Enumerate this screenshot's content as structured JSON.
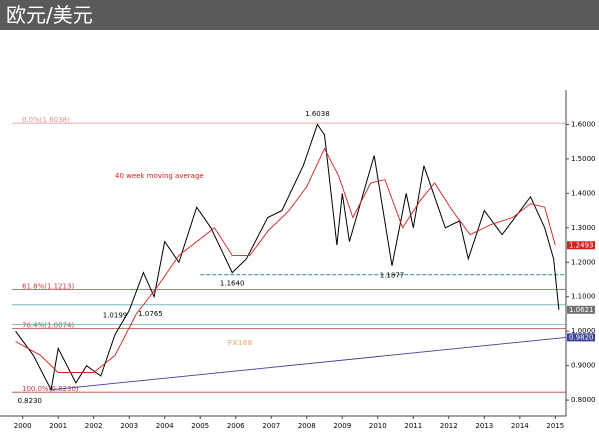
{
  "chart_data": {
    "type": "line",
    "title": "欧元/美元",
    "x": [
      1999.8,
      2000.3,
      2000.8,
      2001.0,
      2001.5,
      2001.8,
      2002.2,
      2002.6,
      2003.0,
      2003.4,
      2003.7,
      2004.0,
      2004.4,
      2004.9,
      2005.3,
      2005.9,
      2006.3,
      2006.9,
      2007.3,
      2007.9,
      2008.3,
      2008.5,
      2008.85,
      2009.0,
      2009.2,
      2009.9,
      2010.4,
      2010.8,
      2011.0,
      2011.3,
      2011.9,
      2012.3,
      2012.55,
      2013.0,
      2013.5,
      2014.3,
      2014.7,
      2014.95,
      2015.1
    ],
    "series": [
      {
        "color": "#000000",
        "values": [
          1.0,
          0.93,
          0.83,
          0.95,
          0.85,
          0.9,
          0.87,
          0.99,
          1.06,
          1.17,
          1.1,
          1.26,
          1.2,
          1.36,
          1.3,
          1.17,
          1.21,
          1.33,
          1.35,
          1.48,
          1.6,
          1.57,
          1.25,
          1.4,
          1.26,
          1.51,
          1.19,
          1.4,
          1.3,
          1.48,
          1.3,
          1.32,
          1.21,
          1.35,
          1.28,
          1.39,
          1.3,
          1.21,
          1.0621
        ]
      },
      {
        "name": "40 week moving average",
        "color": "#d02020",
        "x": [
          1999.8,
          2000.5,
          2001.0,
          2001.5,
          2002.0,
          2002.6,
          2003.2,
          2003.8,
          2004.4,
          2004.9,
          2005.4,
          2005.9,
          2006.4,
          2006.9,
          2007.5,
          2008.0,
          2008.5,
          2008.9,
          2009.3,
          2009.8,
          2010.2,
          2010.7,
          2011.2,
          2011.6,
          2012.1,
          2012.6,
          2013.2,
          2013.8,
          2014.3,
          2014.7,
          2015.0
        ],
        "values": [
          0.97,
          0.93,
          0.88,
          0.88,
          0.88,
          0.93,
          1.05,
          1.13,
          1.22,
          1.26,
          1.3,
          1.22,
          1.22,
          1.29,
          1.35,
          1.42,
          1.53,
          1.45,
          1.33,
          1.43,
          1.44,
          1.3,
          1.38,
          1.43,
          1.35,
          1.28,
          1.31,
          1.33,
          1.37,
          1.36,
          1.2493
        ]
      },
      {
        "color": "#40409a",
        "x": [
          2000.8,
          2015.3
        ],
        "values": [
          0.83,
          0.982
        ]
      }
    ],
    "xlim": [
      1999.7,
      2015.3
    ],
    "xticks": [
      2000,
      2001,
      2002,
      2003,
      2004,
      2005,
      2006,
      2007,
      2008,
      2009,
      2010,
      2011,
      2012,
      2013,
      2014,
      2015
    ],
    "ylim": [
      0.78,
      1.7
    ],
    "yticks": [
      {
        "value": 0.8,
        "label": "0.8000"
      },
      {
        "value": 0.9,
        "label": "0.9000"
      },
      {
        "value": 1.0,
        "label": "1.0000"
      },
      {
        "value": 1.1,
        "label": "1.1000"
      },
      {
        "value": 1.2,
        "label": "1.2000"
      },
      {
        "value": 1.3,
        "label": "1.3000"
      },
      {
        "value": 1.4,
        "label": "1.4000"
      },
      {
        "value": 1.5,
        "label": "1.5000"
      },
      {
        "value": 1.6,
        "label": "1.6000"
      }
    ],
    "levels": [
      {
        "value": 1.6038,
        "label": "0.0%(1.6038)",
        "color": "#e09090",
        "style": "solid"
      },
      {
        "value": 1.1213,
        "label": "61.8%(1.1213)",
        "color": "#c04040",
        "style": "solid"
      },
      {
        "value": 1.0074,
        "label": "76.4%(1.0074)",
        "color": "#c04040",
        "style": "solid"
      },
      {
        "value": 0.823,
        "label": "100.0%(0.8230)",
        "color": "#c04040",
        "style": "solid"
      },
      {
        "value": 1.164,
        "color": "#3a9a9a",
        "style": "dashed"
      },
      {
        "value": 1.0765,
        "color": "#60b0b0",
        "style": "solid"
      },
      {
        "value": 1.0199,
        "color": "#60b0b0",
        "style": "solid"
      }
    ],
    "annotations": [
      {
        "value": 1.6038,
        "x": 2008.3,
        "pos": "above"
      },
      {
        "value": 1.164,
        "label": "1.1640",
        "x": 2005.9,
        "pos": "below"
      },
      {
        "value": 1.1877,
        "x": 2010.4,
        "pos": "below"
      },
      {
        "value": 1.0199,
        "x": 2002.6,
        "pos": "above"
      },
      {
        "value": 1.0765,
        "x": 2003.6,
        "pos": "below"
      },
      {
        "value": 0.823,
        "label": "0.8230",
        "x": 2000.2,
        "pos": "below"
      }
    ],
    "tags": [
      {
        "value": 1.2493,
        "color": "#d02020"
      },
      {
        "value": 1.0621,
        "color": "#707070"
      },
      {
        "value": 0.982,
        "label": "0.9820",
        "color": "#40409a"
      }
    ],
    "watermark": "FX168"
  }
}
